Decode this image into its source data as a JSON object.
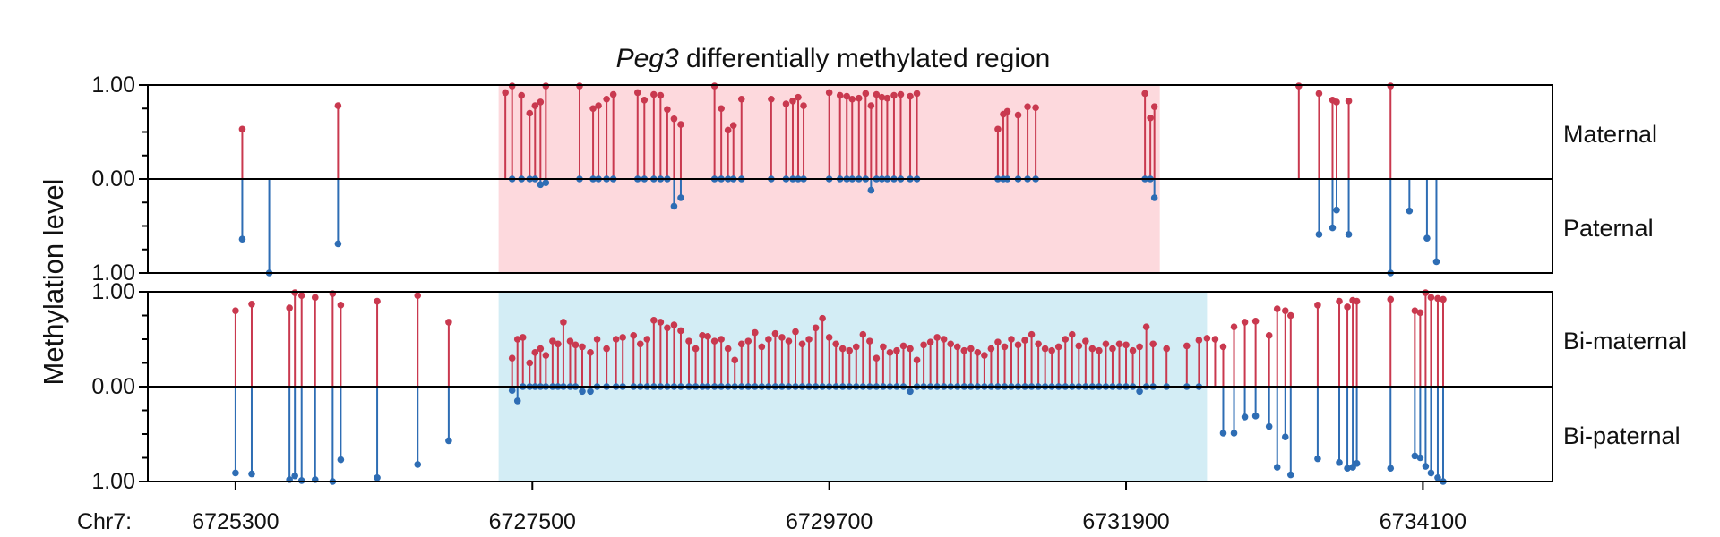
{
  "chart_data": {
    "type": "lollipop",
    "title_gene": "Peg3",
    "title_rest": " differentially methylated region",
    "ylabel": "Methylation level",
    "x_prefix": "Chr7:",
    "xlim": [
      6724650,
      6735060
    ],
    "x_ticks": [
      6725300,
      6727500,
      6729700,
      6731900,
      6734100
    ],
    "x_tick_labels": [
      "6725300",
      "6727500",
      "6729700",
      "6731900",
      "6734100"
    ],
    "colors": {
      "upper": "#c9394f",
      "lower": "#2e6db4",
      "top_shade": "#fdd9dd",
      "bottom_shade": "#d3edf5",
      "axis": "#000000"
    },
    "panels": [
      {
        "id": "top",
        "upper_label": "Maternal",
        "lower_label": "Paternal",
        "ytick_labels": [
          "1.00",
          "0.00",
          "1.00"
        ],
        "shade_range": [
          6727250,
          6732150
        ],
        "points": [
          [
            6725350,
            0.53,
            0.64
          ],
          [
            6725550,
            null,
            1.0
          ],
          [
            6726060,
            0.78,
            0.69
          ],
          [
            6727300,
            0.92,
            null
          ],
          [
            6727350,
            0.99,
            0.0
          ],
          [
            6727420,
            0.89,
            0.0
          ],
          [
            6727480,
            0.7,
            0.0
          ],
          [
            6727520,
            0.78,
            0.0
          ],
          [
            6727560,
            0.82,
            0.06
          ],
          [
            6727600,
            0.99,
            0.04
          ],
          [
            6727850,
            0.99,
            0.0
          ],
          [
            6727950,
            0.75,
            0.0
          ],
          [
            6727990,
            0.78,
            0.0
          ],
          [
            6728050,
            0.85,
            0.0
          ],
          [
            6728100,
            0.9,
            0.0
          ],
          [
            6728280,
            0.92,
            0.0
          ],
          [
            6728330,
            0.84,
            0.0
          ],
          [
            6728400,
            0.9,
            0.0
          ],
          [
            6728450,
            0.89,
            0.0
          ],
          [
            6728500,
            0.74,
            0.0
          ],
          [
            6728550,
            0.64,
            0.29
          ],
          [
            6728600,
            0.58,
            0.2
          ],
          [
            6728850,
            0.99,
            0.0
          ],
          [
            6728900,
            0.75,
            0.0
          ],
          [
            6728950,
            0.52,
            0.0
          ],
          [
            6728990,
            0.57,
            0.0
          ],
          [
            6729050,
            0.85,
            0.0
          ],
          [
            6729270,
            0.85,
            0.0
          ],
          [
            6729380,
            0.8,
            0.0
          ],
          [
            6729430,
            0.83,
            0.0
          ],
          [
            6729470,
            0.87,
            0.0
          ],
          [
            6729510,
            0.78,
            0.0
          ],
          [
            6729700,
            0.92,
            0.0
          ],
          [
            6729780,
            0.89,
            0.0
          ],
          [
            6729830,
            0.88,
            0.0
          ],
          [
            6729870,
            0.85,
            0.0
          ],
          [
            6729920,
            0.86,
            0.0
          ],
          [
            6729970,
            0.91,
            0.0
          ],
          [
            6730010,
            0.78,
            0.12
          ],
          [
            6730050,
            0.9,
            0.0
          ],
          [
            6730090,
            0.87,
            0.0
          ],
          [
            6730130,
            0.86,
            0.0
          ],
          [
            6730180,
            0.89,
            0.0
          ],
          [
            6730230,
            0.9,
            0.0
          ],
          [
            6730300,
            0.88,
            0.0
          ],
          [
            6730350,
            0.91,
            0.0
          ],
          [
            6730950,
            0.53,
            0.0
          ],
          [
            6730990,
            0.69,
            0.0
          ],
          [
            6731020,
            0.72,
            0.0
          ],
          [
            6731100,
            0.68,
            0.0
          ],
          [
            6731170,
            0.77,
            0.0
          ],
          [
            6731230,
            0.76,
            0.0
          ],
          [
            6732040,
            0.91,
            0.0
          ],
          [
            6732080,
            0.65,
            0.0
          ],
          [
            6732110,
            0.77,
            0.2
          ],
          [
            6733180,
            0.99,
            null
          ],
          [
            6733330,
            0.91,
            0.59
          ],
          [
            6733430,
            0.84,
            0.52
          ],
          [
            6733460,
            0.82,
            0.33
          ],
          [
            6733550,
            0.83,
            0.59
          ],
          [
            6733860,
            0.99,
            1.0
          ],
          [
            6734000,
            null,
            0.34
          ],
          [
            6734130,
            null,
            0.63
          ],
          [
            6734200,
            null,
            0.88
          ]
        ]
      },
      {
        "id": "bottom",
        "upper_label": "Bi-maternal",
        "lower_label": "Bi-paternal",
        "ytick_labels": [
          "1.00",
          "0.00",
          "1.00"
        ],
        "shade_range": [
          6727250,
          6732500
        ],
        "points": [
          [
            6725300,
            0.8,
            0.91
          ],
          [
            6725420,
            0.87,
            0.92
          ],
          [
            6725700,
            0.83,
            0.98
          ],
          [
            6725740,
            0.99,
            0.94
          ],
          [
            6725790,
            0.96,
            0.99
          ],
          [
            6725890,
            0.94,
            0.98
          ],
          [
            6726020,
            0.98,
            1.0
          ],
          [
            6726080,
            0.86,
            0.77
          ],
          [
            6726350,
            0.9,
            0.96
          ],
          [
            6726650,
            0.96,
            0.82
          ],
          [
            6726880,
            0.68,
            0.57
          ],
          [
            6727350,
            0.3,
            0.04
          ],
          [
            6727390,
            0.5,
            0.15
          ],
          [
            6727430,
            0.52,
            0.0
          ],
          [
            6727480,
            0.25,
            0.0
          ],
          [
            6727520,
            0.36,
            0.0
          ],
          [
            6727560,
            0.4,
            0.0
          ],
          [
            6727600,
            0.33,
            0.0
          ],
          [
            6727650,
            0.48,
            0.0
          ],
          [
            6727690,
            0.45,
            0.0
          ],
          [
            6727730,
            0.68,
            0.0
          ],
          [
            6727780,
            0.48,
            0.0
          ],
          [
            6727820,
            0.44,
            0.0
          ],
          [
            6727870,
            0.42,
            0.05
          ],
          [
            6727930,
            0.36,
            0.05
          ],
          [
            6727980,
            0.5,
            0.0
          ],
          [
            6728050,
            0.4,
            0.0
          ],
          [
            6728120,
            0.5,
            0.0
          ],
          [
            6728170,
            0.52,
            0.0
          ],
          [
            6728250,
            0.54,
            0.0
          ],
          [
            6728300,
            0.45,
            0.0
          ],
          [
            6728350,
            0.5,
            0.0
          ],
          [
            6728400,
            0.7,
            0.0
          ],
          [
            6728450,
            0.68,
            0.0
          ],
          [
            6728500,
            0.62,
            0.0
          ],
          [
            6728550,
            0.65,
            0.0
          ],
          [
            6728600,
            0.59,
            0.0
          ],
          [
            6728660,
            0.48,
            0.0
          ],
          [
            6728710,
            0.4,
            0.0
          ],
          [
            6728760,
            0.54,
            0.0
          ],
          [
            6728800,
            0.53,
            0.0
          ],
          [
            6728850,
            0.48,
            0.0
          ],
          [
            6728900,
            0.5,
            0.0
          ],
          [
            6728950,
            0.4,
            0.0
          ],
          [
            6729000,
            0.28,
            0.0
          ],
          [
            6729050,
            0.45,
            0.0
          ],
          [
            6729100,
            0.48,
            0.0
          ],
          [
            6729150,
            0.57,
            0.0
          ],
          [
            6729200,
            0.42,
            0.0
          ],
          [
            6729250,
            0.5,
            0.0
          ],
          [
            6729300,
            0.56,
            0.0
          ],
          [
            6729350,
            0.52,
            0.0
          ],
          [
            6729400,
            0.48,
            0.0
          ],
          [
            6729450,
            0.58,
            0.0
          ],
          [
            6729500,
            0.45,
            0.0
          ],
          [
            6729550,
            0.5,
            0.0
          ],
          [
            6729600,
            0.62,
            0.0
          ],
          [
            6729650,
            0.72,
            0.0
          ],
          [
            6729700,
            0.52,
            0.0
          ],
          [
            6729750,
            0.45,
            0.0
          ],
          [
            6729800,
            0.4,
            0.0
          ],
          [
            6729850,
            0.38,
            0.0
          ],
          [
            6729900,
            0.42,
            0.0
          ],
          [
            6729950,
            0.55,
            0.0
          ],
          [
            6730000,
            0.48,
            0.0
          ],
          [
            6730050,
            0.3,
            0.0
          ],
          [
            6730100,
            0.42,
            0.0
          ],
          [
            6730150,
            0.36,
            0.0
          ],
          [
            6730200,
            0.38,
            0.0
          ],
          [
            6730250,
            0.43,
            0.0
          ],
          [
            6730300,
            0.4,
            0.05
          ],
          [
            6730350,
            0.28,
            0.0
          ],
          [
            6730400,
            0.44,
            0.0
          ],
          [
            6730450,
            0.47,
            0.0
          ],
          [
            6730500,
            0.52,
            0.0
          ],
          [
            6730550,
            0.5,
            0.0
          ],
          [
            6730600,
            0.45,
            0.0
          ],
          [
            6730650,
            0.42,
            0.0
          ],
          [
            6730700,
            0.38,
            0.0
          ],
          [
            6730750,
            0.4,
            0.0
          ],
          [
            6730800,
            0.36,
            0.0
          ],
          [
            6730850,
            0.33,
            0.0
          ],
          [
            6730900,
            0.4,
            0.0
          ],
          [
            6730950,
            0.47,
            0.0
          ],
          [
            6731000,
            0.42,
            0.0
          ],
          [
            6731050,
            0.5,
            0.0
          ],
          [
            6731100,
            0.44,
            0.0
          ],
          [
            6731150,
            0.49,
            0.0
          ],
          [
            6731200,
            0.55,
            0.0
          ],
          [
            6731250,
            0.45,
            0.0
          ],
          [
            6731300,
            0.4,
            0.0
          ],
          [
            6731350,
            0.38,
            0.0
          ],
          [
            6731400,
            0.42,
            0.0
          ],
          [
            6731450,
            0.5,
            0.0
          ],
          [
            6731500,
            0.55,
            0.0
          ],
          [
            6731550,
            0.43,
            0.0
          ],
          [
            6731600,
            0.48,
            0.0
          ],
          [
            6731650,
            0.4,
            0.0
          ],
          [
            6731700,
            0.38,
            0.0
          ],
          [
            6731750,
            0.45,
            0.0
          ],
          [
            6731800,
            0.4,
            0.0
          ],
          [
            6731850,
            0.45,
            0.0
          ],
          [
            6731900,
            0.44,
            0.0
          ],
          [
            6731950,
            0.38,
            0.0
          ],
          [
            6732000,
            0.42,
            0.05
          ],
          [
            6732050,
            0.63,
            0.0
          ],
          [
            6732100,
            0.45,
            0.0
          ],
          [
            6732200,
            0.4,
            0.0
          ],
          [
            6732350,
            0.43,
            0.0
          ],
          [
            6732440,
            0.49,
            0.0
          ],
          [
            6732500,
            0.51,
            null
          ],
          [
            6732560,
            0.5,
            null
          ],
          [
            6732620,
            0.42,
            0.49
          ],
          [
            6732700,
            0.63,
            0.49
          ],
          [
            6732780,
            0.68,
            0.32
          ],
          [
            6732860,
            0.69,
            0.31
          ],
          [
            6732960,
            0.54,
            0.42
          ],
          [
            6733020,
            0.82,
            0.85
          ],
          [
            6733080,
            0.8,
            0.53
          ],
          [
            6733120,
            0.75,
            0.93
          ],
          [
            6733320,
            0.86,
            0.76
          ],
          [
            6733480,
            0.9,
            0.8
          ],
          [
            6733540,
            0.84,
            0.86
          ],
          [
            6733580,
            0.91,
            0.85
          ],
          [
            6733610,
            0.9,
            0.81
          ],
          [
            6733860,
            0.92,
            0.86
          ],
          [
            6734040,
            0.8,
            0.73
          ],
          [
            6734080,
            0.78,
            0.75
          ],
          [
            6734120,
            0.99,
            0.84
          ],
          [
            6734160,
            0.94,
            0.91
          ],
          [
            6734210,
            0.93,
            0.96
          ],
          [
            6734250,
            0.92,
            1.0
          ]
        ]
      }
    ]
  }
}
